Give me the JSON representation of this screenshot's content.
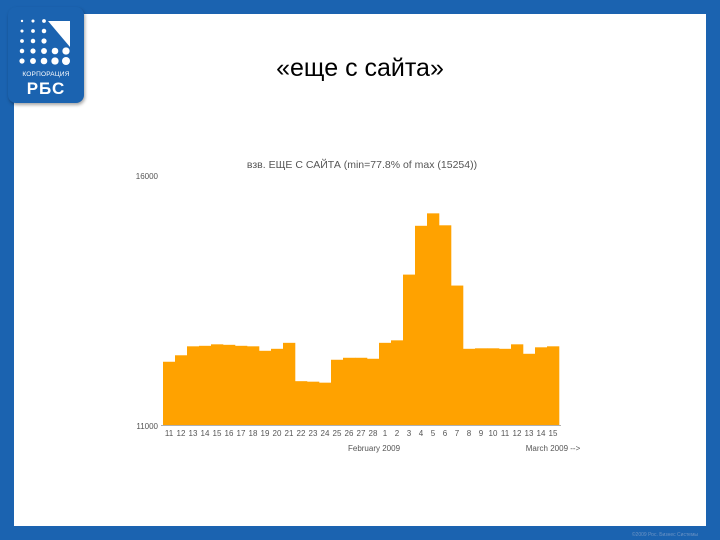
{
  "slide": {
    "title": "«еще с сайта»",
    "logo": {
      "line1": "КОРПОРАЦИЯ",
      "line2": "РБС"
    },
    "footer": "©2009 Рос. Бизнес Системы"
  },
  "colors": {
    "bar": "#ffa200",
    "frame": "#1b63b0",
    "axis": "#b0b0b0"
  },
  "chart_data": {
    "type": "bar",
    "title": "взв. ЕЩЕ С САЙТА (min=77.8% of max (15254))",
    "ylim": [
      11000,
      16000
    ],
    "y_ticks": [
      "16000",
      "11000"
    ],
    "month_labels": [
      "February 2009",
      "March 2009 -->"
    ],
    "categories": [
      "11",
      "12",
      "13",
      "14",
      "15",
      "16",
      "17",
      "18",
      "19",
      "20",
      "21",
      "22",
      "23",
      "24",
      "25",
      "26",
      "27",
      "28",
      "1",
      "2",
      "3",
      "4",
      "5",
      "6",
      "7",
      "8",
      "9",
      "10",
      "11",
      "12",
      "13",
      "14",
      "15"
    ],
    "values": [
      12270,
      12400,
      12580,
      12590,
      12620,
      12610,
      12590,
      12580,
      12490,
      12530,
      12650,
      11880,
      11870,
      11850,
      12310,
      12350,
      12350,
      12330,
      12650,
      12700,
      14020,
      15000,
      15250,
      15010,
      13800,
      12530,
      12540,
      12540,
      12530,
      12620,
      12430,
      12560,
      12580
    ]
  }
}
